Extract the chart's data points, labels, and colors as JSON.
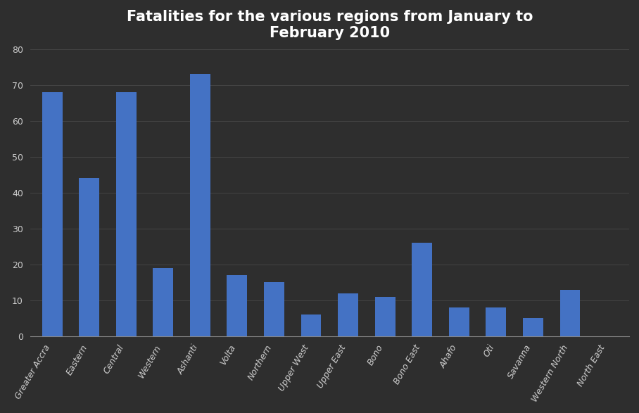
{
  "title": "Fatalities for the various regions from January to\nFebruary 2010",
  "categories": [
    "Greater Accra",
    "Eastern",
    "Central",
    "Western",
    "Ashanti",
    "Volta",
    "Northern",
    "Upper West",
    "Upper East",
    "Bono",
    "Bono East",
    "Ahafo",
    "Oti",
    "Savanna",
    "Western North",
    "North East"
  ],
  "values": [
    68,
    44,
    68,
    19,
    73,
    17,
    15,
    6,
    12,
    11,
    26,
    8,
    8,
    5,
    13,
    0
  ],
  "bar_color": "#4472C4",
  "background_color": "#2e2e2e",
  "plot_bg_color": "#2e2e2e",
  "title_color": "#ffffff",
  "tick_color": "#cccccc",
  "grid_color": "#484848",
  "ylim": [
    0,
    80
  ],
  "yticks": [
    0,
    10,
    20,
    30,
    40,
    50,
    60,
    70,
    80
  ],
  "title_fontsize": 15,
  "tick_fontsize": 9,
  "bar_width": 0.55
}
